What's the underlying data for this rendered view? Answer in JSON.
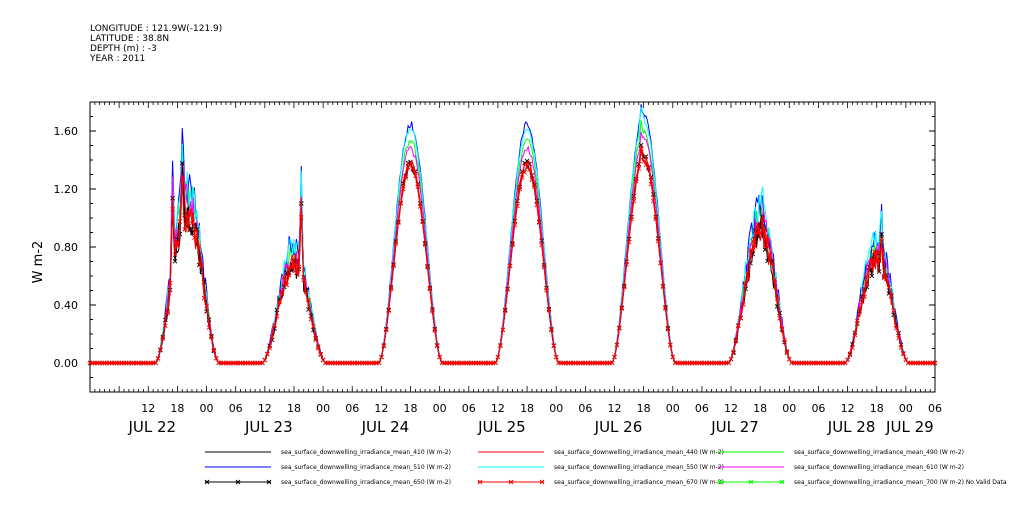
{
  "header": {
    "lines": [
      "LONGITUDE : 121.9W(-121.9)",
      "LATITUDE : 38.8N",
      "DEPTH (m) : -3",
      "YEAR : 2011"
    ]
  },
  "chart_data": {
    "type": "line",
    "title": "",
    "xlabel": "",
    "ylabel": "W m-2",
    "ylim": [
      -0.2,
      1.8
    ],
    "xlim_hours": [
      0,
      174
    ],
    "grid": false,
    "legend_position": "bottom",
    "y_ticks": [
      "0.00",
      "0.40",
      "0.80",
      "1.20",
      "1.60"
    ],
    "y_tick_values": [
      0,
      0.4,
      0.8,
      1.2,
      1.6
    ],
    "x_hour_ticks": [
      {
        "label": "12",
        "t": 12
      },
      {
        "label": "18",
        "t": 18
      },
      {
        "label": "00",
        "t": 24
      },
      {
        "label": "06",
        "t": 30
      },
      {
        "label": "12",
        "t": 36
      },
      {
        "label": "18",
        "t": 42
      },
      {
        "label": "00",
        "t": 48
      },
      {
        "label": "06",
        "t": 54
      },
      {
        "label": "12",
        "t": 60
      },
      {
        "label": "18",
        "t": 66
      },
      {
        "label": "00",
        "t": 72
      },
      {
        "label": "06",
        "t": 78
      },
      {
        "label": "12",
        "t": 84
      },
      {
        "label": "18",
        "t": 90
      },
      {
        "label": "00",
        "t": 96
      },
      {
        "label": "06",
        "t": 102
      },
      {
        "label": "12",
        "t": 108
      },
      {
        "label": "18",
        "t": 114
      },
      {
        "label": "00",
        "t": 120
      },
      {
        "label": "06",
        "t": 126
      },
      {
        "label": "12",
        "t": 132
      },
      {
        "label": "18",
        "t": 138
      },
      {
        "label": "00",
        "t": 144
      },
      {
        "label": "06",
        "t": 150
      },
      {
        "label": "12",
        "t": 156
      },
      {
        "label": "18",
        "t": 162
      },
      {
        "label": "00",
        "t": 168
      },
      {
        "label": "06",
        "t": 174
      }
    ],
    "x_day_labels": [
      {
        "label": "JUL 22",
        "t": 12
      },
      {
        "label": "JUL 23",
        "t": 36
      },
      {
        "label": "JUL 24",
        "t": 60
      },
      {
        "label": "JUL 25",
        "t": 84
      },
      {
        "label": "JUL 26",
        "t": 108
      },
      {
        "label": "JUL 27",
        "t": 132
      },
      {
        "label": "JUL 28",
        "t": 156
      },
      {
        "label": "JUL 29",
        "t": 168
      }
    ],
    "days": [
      {
        "label": "JUL 22",
        "peak_hour": 20,
        "peak_410": 1.05,
        "spikes": [
          [
            17,
            1.35
          ],
          [
            19,
            1.62
          ],
          [
            21,
            1.0
          ]
        ]
      },
      {
        "label": "JUL 23",
        "peak_hour": 42,
        "peak_410": 0.68,
        "spikes": [
          [
            41,
            0.8
          ],
          [
            43.5,
            1.3
          ]
        ]
      },
      {
        "label": "JUL 24",
        "peak_hour": 66,
        "peak_410": 1.35,
        "spikes": []
      },
      {
        "label": "JUL 25",
        "peak_hour": 90,
        "peak_410": 1.35,
        "spikes": []
      },
      {
        "label": "JUL 26",
        "peak_hour": 114,
        "peak_410": 1.4,
        "spikes": [
          [
            113.5,
            1.75
          ]
        ]
      },
      {
        "label": "JUL 27",
        "peak_hour": 138,
        "peak_410": 0.9,
        "spikes": [
          [
            138.5,
            1.18
          ]
        ]
      },
      {
        "label": "JUL 28",
        "peak_hour": 162,
        "peak_410": 0.72,
        "spikes": [
          [
            163,
            1.05
          ]
        ]
      }
    ],
    "series": [
      {
        "name": "sea_surface_downwelling_irradiance_mean_410 (W m-2)",
        "color": "#000000",
        "factor": 1.0,
        "marker": "none"
      },
      {
        "name": "sea_surface_downwelling_irradiance_mean_440 (W m-2)",
        "color": "#ff0000",
        "factor": 1.03,
        "marker": "none"
      },
      {
        "name": "sea_surface_downwelling_irradiance_mean_490 (W m-2)",
        "color": "#00ff00",
        "factor": 1.14,
        "marker": "none"
      },
      {
        "name": "sea_surface_downwelling_irradiance_mean_510 (W m-2)",
        "color": "#0000ff",
        "factor": 1.22,
        "marker": "none"
      },
      {
        "name": "sea_surface_downwelling_irradiance_mean_550 (W m-2)",
        "color": "#00ffff",
        "factor": 1.2,
        "marker": "none"
      },
      {
        "name": "sea_surface_downwelling_irradiance_mean_610 (W m-2)",
        "color": "#ff00ff",
        "factor": 1.1,
        "marker": "none"
      },
      {
        "name": "sea_surface_downwelling_irradiance_mean_650 (W m-2)",
        "color": "#000000",
        "factor": 1.02,
        "marker": "x"
      },
      {
        "name": "sea_surface_downwelling_irradiance_mean_670 (W m-2)",
        "color": "#ff0000",
        "factor": 1.0,
        "marker": "x"
      },
      {
        "name": "sea_surface_downwelling_irradiance_mean_700 (W m-2) No Valid Data",
        "color": "#00ff00",
        "factor": 0,
        "marker": "x"
      }
    ]
  }
}
